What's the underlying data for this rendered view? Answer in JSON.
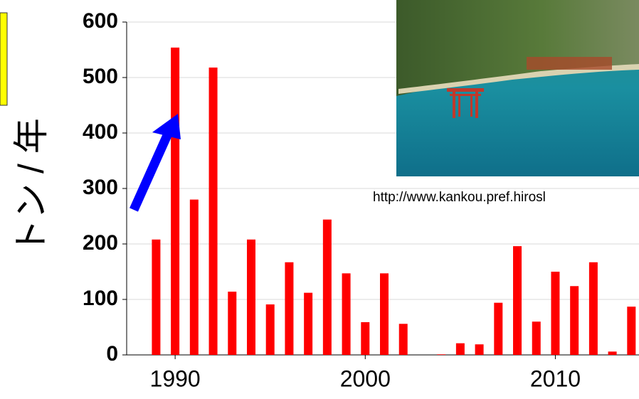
{
  "chart_data": {
    "type": "bar",
    "ylabel": "トン / 年",
    "annotation": "http://www.kankou.pref.hirosl",
    "x": [
      1989,
      1990,
      1991,
      1992,
      1993,
      1994,
      1995,
      1996,
      1997,
      1998,
      1999,
      2000,
      2001,
      2002,
      2003,
      2004,
      2005,
      2006,
      2007,
      2008,
      2009,
      2010,
      2011,
      2012,
      2013,
      2014
    ],
    "values": [
      208,
      554,
      280,
      518,
      114,
      208,
      91,
      167,
      112,
      244,
      147,
      59,
      147,
      56,
      0,
      1,
      21,
      19,
      94,
      196,
      60,
      150,
      124,
      167,
      6,
      87
    ],
    "color": "#ff0000",
    "xlim": [
      1987.45,
      2014.4
    ],
    "xticks": [
      1990,
      2000,
      2010
    ],
    "ylim": [
      0,
      600
    ],
    "yticks": [
      0,
      100,
      200,
      300,
      400,
      500,
      600
    ],
    "grid": true
  }
}
